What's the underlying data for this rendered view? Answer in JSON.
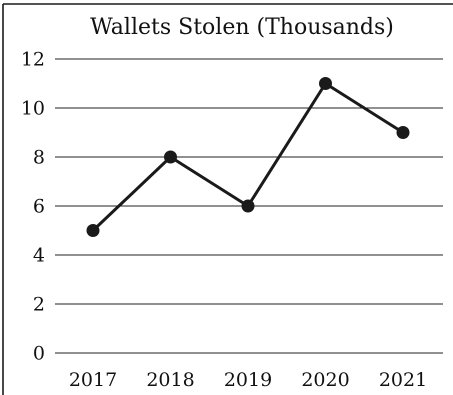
{
  "chart_data": {
    "type": "line",
    "title": "Wallets Stolen (Thousands)",
    "xlabel": "",
    "ylabel": "",
    "categories": [
      "2017",
      "2018",
      "2019",
      "2020",
      "2021"
    ],
    "values": [
      5,
      8,
      6,
      11,
      9
    ],
    "ylim": [
      0,
      12
    ],
    "yticks": [
      0,
      2,
      4,
      6,
      8,
      10,
      12
    ],
    "grid": true,
    "legend": "none",
    "colors": {
      "line": "#1a1a1a",
      "grid": "#222222",
      "text": "#111111"
    }
  }
}
